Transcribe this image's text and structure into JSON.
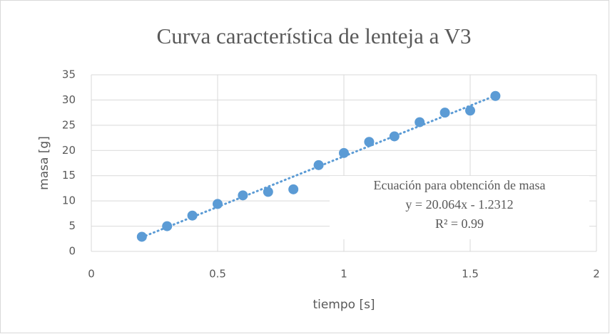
{
  "chart_data": {
    "type": "scatter",
    "title": "Curva característica de lenteja a V3",
    "xlabel": "tiempo [s]",
    "ylabel": "masa [g]",
    "x": [
      0.2,
      0.3,
      0.4,
      0.5,
      0.6,
      0.7,
      0.8,
      0.9,
      1.0,
      1.1,
      1.2,
      1.3,
      1.4,
      1.5,
      1.6
    ],
    "values": [
      2.9,
      5.0,
      7.1,
      9.4,
      11.1,
      11.8,
      12.3,
      17.1,
      19.5,
      21.7,
      22.8,
      25.6,
      27.5,
      27.9,
      30.8
    ],
    "color": "#5b9bd5",
    "xlim": [
      0,
      2
    ],
    "xticks": [
      0,
      0.5,
      1,
      1.5,
      2
    ],
    "ylim": [
      0,
      35
    ],
    "yticks": [
      0,
      5,
      10,
      15,
      20,
      25,
      30,
      35
    ],
    "grid": true,
    "trendline": true,
    "annotations": [
      "Ecuación para obtención de masa",
      "y = 20.064x - 1.2312",
      "R² = 0.99"
    ]
  }
}
